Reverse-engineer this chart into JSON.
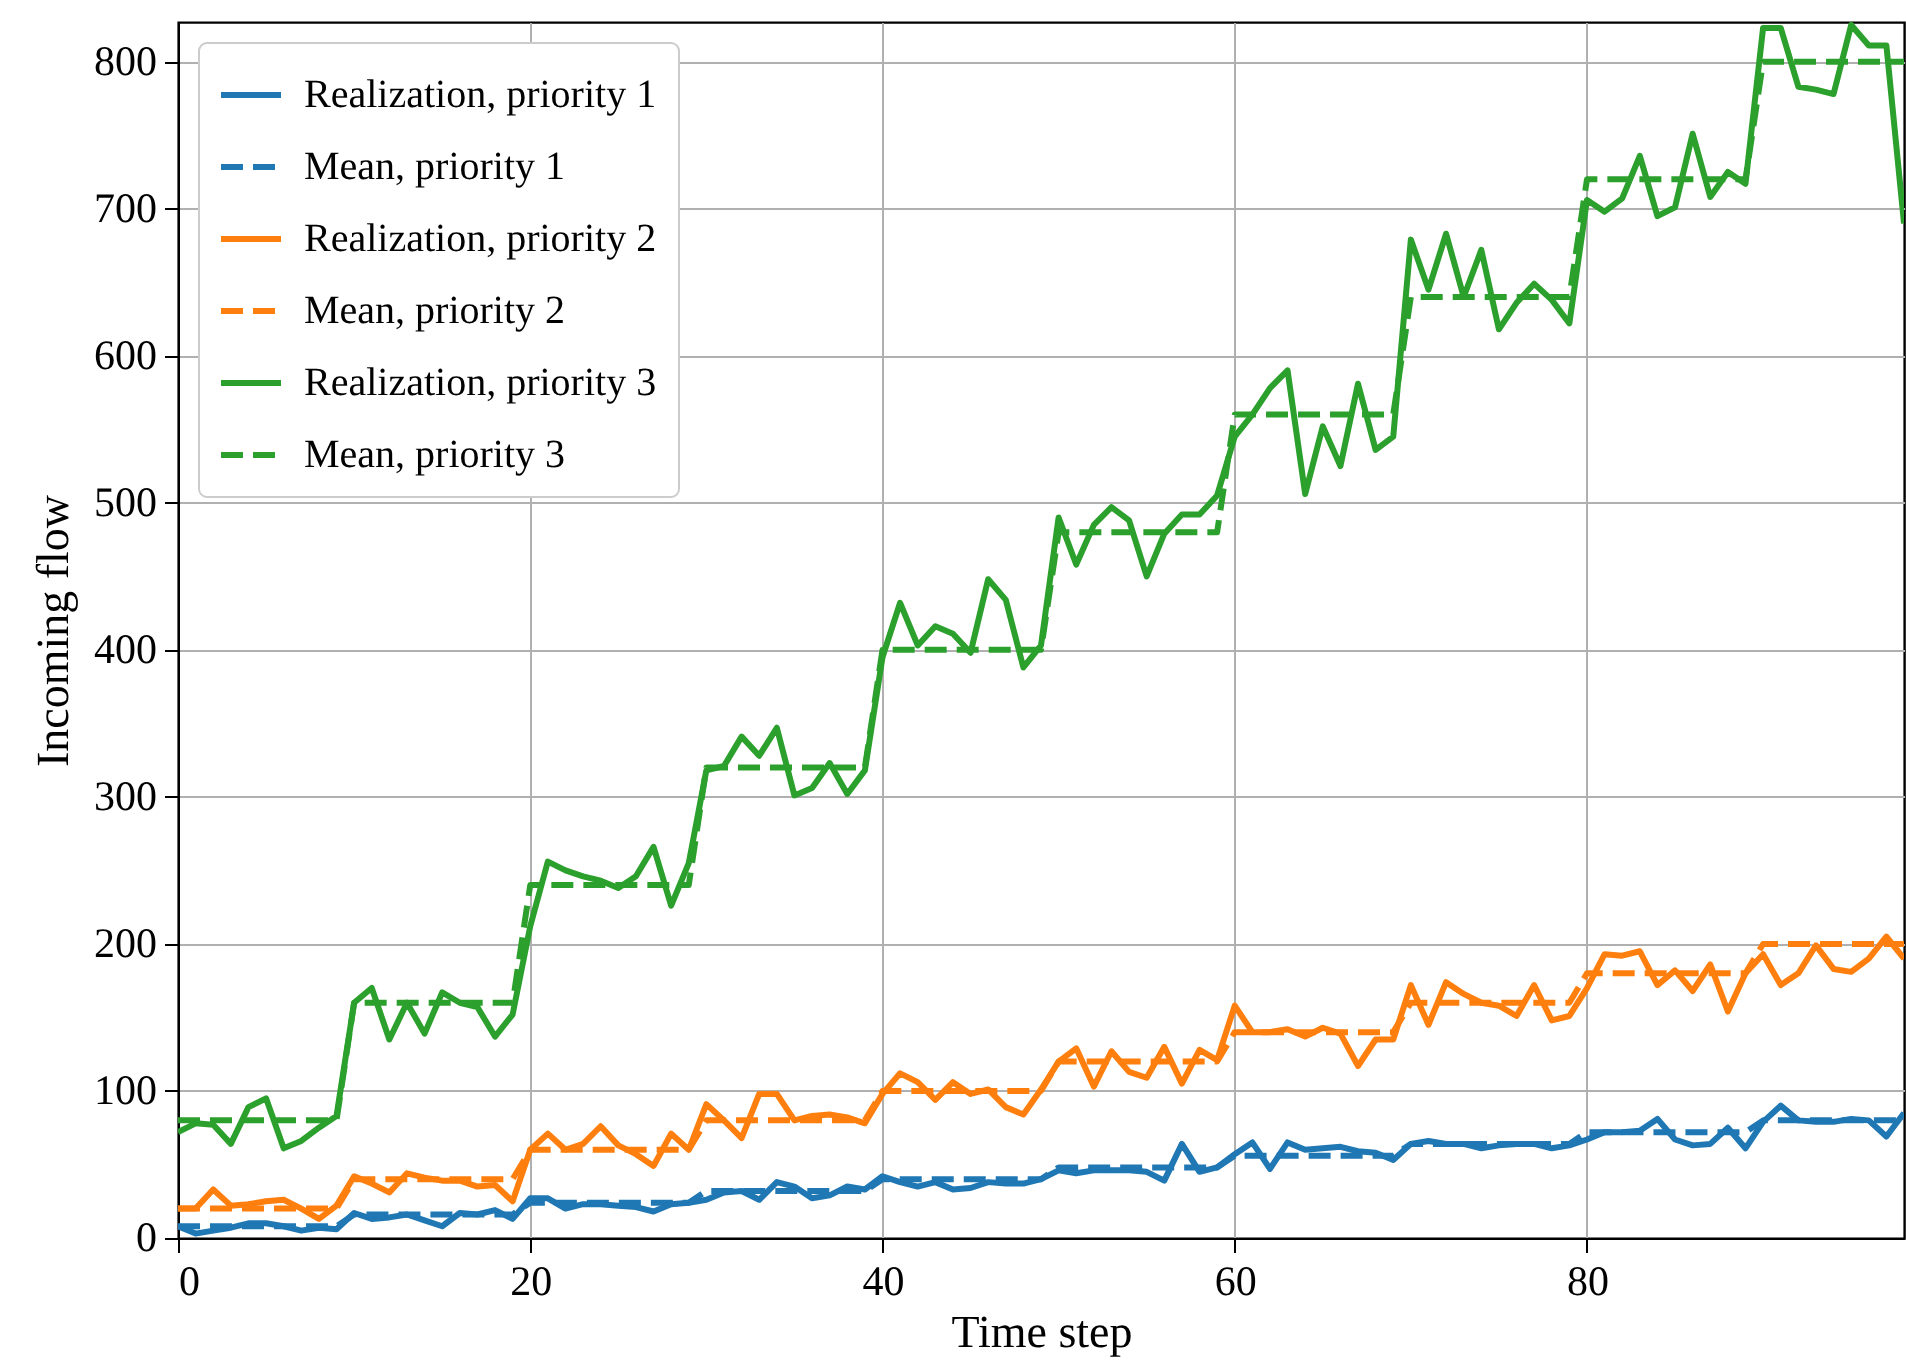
{
  "chart_data": {
    "type": "line",
    "xlabel": "Time step",
    "ylabel": "Incoming flow",
    "x": [
      0,
      1,
      2,
      3,
      4,
      5,
      6,
      7,
      8,
      9,
      10,
      11,
      12,
      13,
      14,
      15,
      16,
      17,
      18,
      19,
      20,
      21,
      22,
      23,
      24,
      25,
      26,
      27,
      28,
      29,
      30,
      31,
      32,
      33,
      34,
      35,
      36,
      37,
      38,
      39,
      40,
      41,
      42,
      43,
      44,
      45,
      46,
      47,
      48,
      49,
      50,
      51,
      52,
      53,
      54,
      55,
      56,
      57,
      58,
      59,
      60,
      61,
      62,
      63,
      64,
      65,
      66,
      67,
      68,
      69,
      70,
      71,
      72,
      73,
      74,
      75,
      76,
      77,
      78,
      79,
      80,
      81,
      82,
      83,
      84,
      85,
      86,
      87,
      88,
      89,
      90,
      91,
      92,
      93,
      94,
      95,
      96,
      97,
      98
    ],
    "xlim": [
      0,
      98
    ],
    "xticks": [
      0,
      20,
      40,
      60,
      80
    ],
    "ylim": [
      0,
      827
    ],
    "yticks": [
      0,
      100,
      200,
      300,
      400,
      500,
      600,
      700,
      800
    ],
    "grid": true,
    "legend": "top left",
    "series": [
      {
        "name": "Realization, priority 1",
        "color": "#1f77b4",
        "line_style": "solid",
        "values": [
          8,
          3,
          5,
          7,
          10,
          10,
          8,
          5,
          7,
          6,
          17,
          13,
          14,
          16,
          12,
          8,
          17,
          16,
          19,
          13,
          27,
          27,
          20,
          23,
          23,
          22,
          21,
          18,
          23,
          24,
          26,
          31,
          32,
          26,
          38,
          35,
          27,
          29,
          35,
          33,
          42,
          38,
          35,
          38,
          33,
          34,
          38,
          37,
          37,
          40,
          46,
          44,
          46,
          46,
          46,
          45,
          39,
          64,
          45,
          48,
          57,
          65,
          47,
          65,
          60,
          61,
          62,
          59,
          58,
          53,
          64,
          66,
          64,
          64,
          61,
          63,
          64,
          64,
          61,
          63,
          67,
          72,
          72,
          73,
          81,
          67,
          63,
          64,
          75,
          61,
          79,
          90,
          80,
          79,
          79,
          81,
          80,
          69,
          85
        ]
      },
      {
        "name": "Mean, priority 1",
        "color": "#1f77b4",
        "line_style": "dashed",
        "values": [
          8,
          8,
          8,
          8,
          8,
          8,
          8,
          8,
          8,
          8,
          16,
          16,
          16,
          16,
          16,
          16,
          16,
          16,
          16,
          16,
          24,
          24,
          24,
          24,
          24,
          24,
          24,
          24,
          24,
          24,
          32,
          32,
          32,
          32,
          32,
          32,
          32,
          32,
          32,
          32,
          40,
          40,
          40,
          40,
          40,
          40,
          40,
          40,
          40,
          40,
          48,
          48,
          48,
          48,
          48,
          48,
          48,
          48,
          48,
          48,
          56,
          56,
          56,
          56,
          56,
          56,
          56,
          56,
          56,
          56,
          64,
          64,
          64,
          64,
          64,
          64,
          64,
          64,
          64,
          64,
          72,
          72,
          72,
          72,
          72,
          72,
          72,
          72,
          72,
          72,
          80,
          80,
          80,
          80,
          80,
          80,
          80,
          80,
          80
        ]
      },
      {
        "name": "Realization, priority 2",
        "color": "#ff7f0e",
        "line_style": "solid",
        "values": [
          20,
          20,
          33,
          22,
          23,
          25,
          26,
          20,
          13,
          22,
          42,
          37,
          31,
          44,
          41,
          39,
          39,
          35,
          36,
          25,
          60,
          71,
          60,
          64,
          76,
          63,
          57,
          49,
          71,
          60,
          91,
          80,
          68,
          98,
          98,
          80,
          83,
          84,
          82,
          78,
          98,
          112,
          106,
          94,
          106,
          98,
          101,
          89,
          84,
          101,
          120,
          129,
          103,
          127,
          113,
          109,
          130,
          105,
          128,
          121,
          158,
          140,
          140,
          142,
          137,
          143,
          139,
          117,
          135,
          135,
          172,
          145,
          174,
          166,
          160,
          158,
          151,
          172,
          148,
          151,
          170,
          193,
          192,
          195,
          172,
          182,
          168,
          186,
          154,
          180,
          193,
          172,
          180,
          199,
          183,
          181,
          190,
          205,
          190
        ]
      },
      {
        "name": "Mean, priority 2",
        "color": "#ff7f0e",
        "line_style": "dashed",
        "values": [
          20,
          20,
          20,
          20,
          20,
          20,
          20,
          20,
          20,
          20,
          40,
          40,
          40,
          40,
          40,
          40,
          40,
          40,
          40,
          40,
          60,
          60,
          60,
          60,
          60,
          60,
          60,
          60,
          60,
          60,
          80,
          80,
          80,
          80,
          80,
          80,
          80,
          80,
          80,
          80,
          100,
          100,
          100,
          100,
          100,
          100,
          100,
          100,
          100,
          100,
          120,
          120,
          120,
          120,
          120,
          120,
          120,
          120,
          120,
          120,
          140,
          140,
          140,
          140,
          140,
          140,
          140,
          140,
          140,
          140,
          160,
          160,
          160,
          160,
          160,
          160,
          160,
          160,
          160,
          160,
          180,
          180,
          180,
          180,
          180,
          180,
          180,
          180,
          180,
          180,
          200,
          200,
          200,
          200,
          200,
          200,
          200,
          200,
          200
        ]
      },
      {
        "name": "Realization, priority 3",
        "color": "#2ca02c",
        "line_style": "solid",
        "values": [
          72,
          78,
          77,
          64,
          89,
          95,
          61,
          66,
          75,
          83,
          160,
          170,
          135,
          160,
          139,
          167,
          160,
          157,
          137,
          152,
          212,
          256,
          250,
          246,
          243,
          238,
          246,
          266,
          226,
          255,
          318,
          321,
          341,
          328,
          347,
          301,
          306,
          323,
          302,
          318,
          395,
          432,
          403,
          416,
          411,
          398,
          448,
          434,
          388,
          403,
          490,
          458,
          485,
          497,
          488,
          450,
          479,
          492,
          492,
          505,
          545,
          560,
          578,
          590,
          506,
          552,
          525,
          581,
          536,
          545,
          679,
          645,
          683,
          640,
          672,
          618,
          636,
          649,
          638,
          622,
          706,
          698,
          707,
          736,
          695,
          701,
          751,
          708,
          725,
          717,
          823,
          823,
          783,
          781,
          778,
          825,
          811,
          811,
          690
        ]
      },
      {
        "name": "Mean, priority 3",
        "color": "#2ca02c",
        "line_style": "dashed",
        "values": [
          80,
          80,
          80,
          80,
          80,
          80,
          80,
          80,
          80,
          80,
          160,
          160,
          160,
          160,
          160,
          160,
          160,
          160,
          160,
          160,
          240,
          240,
          240,
          240,
          240,
          240,
          240,
          240,
          240,
          240,
          320,
          320,
          320,
          320,
          320,
          320,
          320,
          320,
          320,
          320,
          400,
          400,
          400,
          400,
          400,
          400,
          400,
          400,
          400,
          400,
          480,
          480,
          480,
          480,
          480,
          480,
          480,
          480,
          480,
          480,
          560,
          560,
          560,
          560,
          560,
          560,
          560,
          560,
          560,
          560,
          640,
          640,
          640,
          640,
          640,
          640,
          640,
          640,
          640,
          640,
          720,
          720,
          720,
          720,
          720,
          720,
          720,
          720,
          720,
          720,
          800,
          800,
          800,
          800,
          800,
          800,
          800,
          800,
          800
        ]
      }
    ]
  }
}
